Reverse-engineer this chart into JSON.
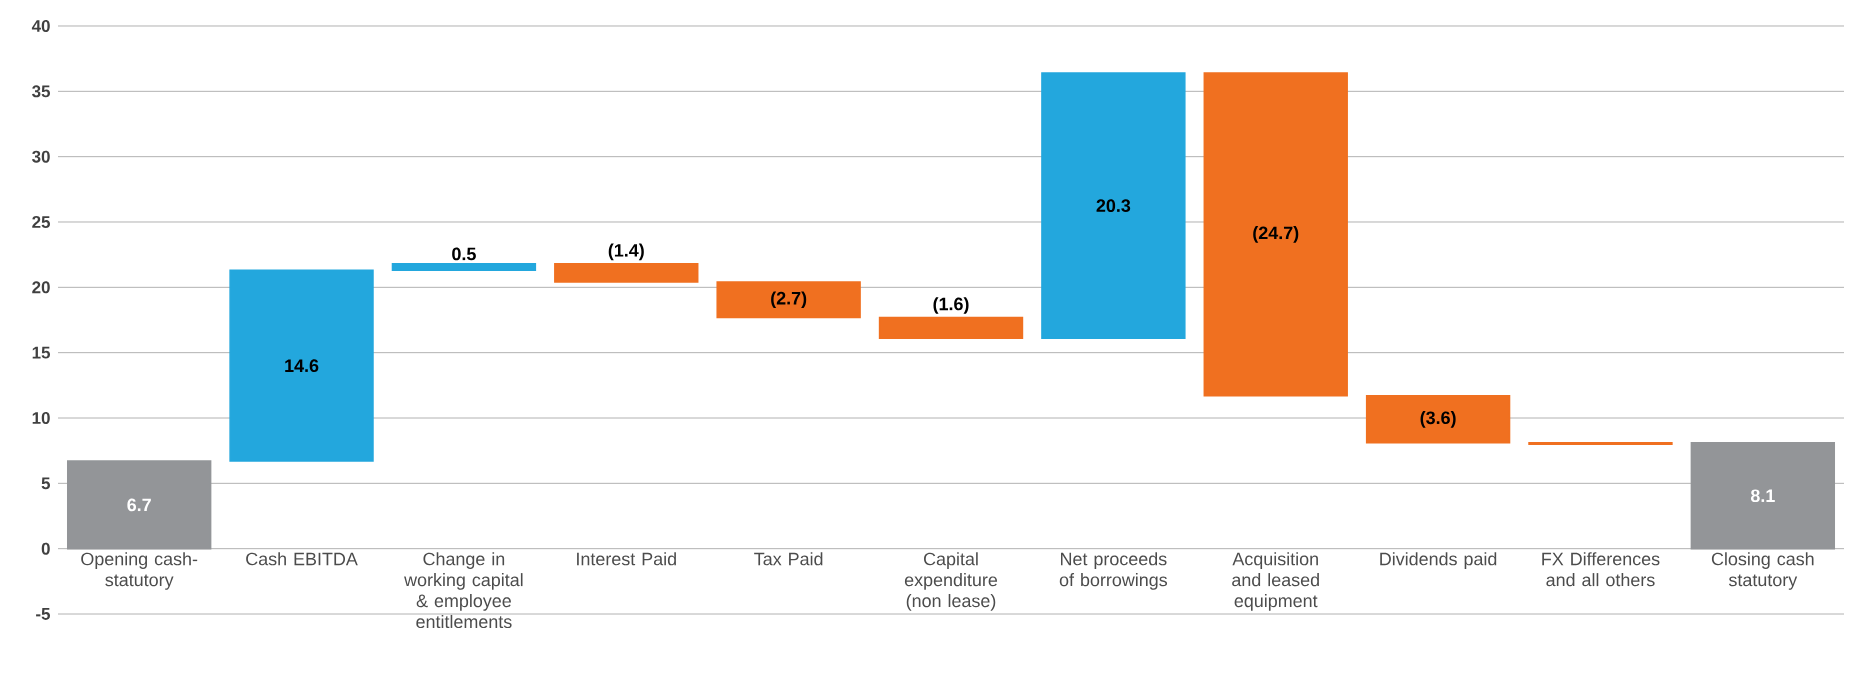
{
  "chart_data": {
    "type": "bar",
    "categories": [
      "Opening cash- statutory",
      "Cash EBITDA",
      "Change in working capital & employee entitlements",
      "Interest Paid",
      "Tax Paid",
      "Capital expenditure (non lease)",
      "Net proceeds of borrowings",
      "Acquisition and leased equipment",
      "Dividends paid",
      "FX Differences and all others",
      "Closing cash statutory"
    ],
    "values": [
      6.7,
      14.6,
      0.5,
      -1.4,
      -2.7,
      -1.6,
      20.3,
      -24.7,
      -3.6,
      -0.1,
      8.1
    ],
    "base": [
      0,
      6.7,
      21.3,
      21.8,
      20.4,
      17.7,
      16.1,
      36.4,
      11.7,
      8.1,
      0
    ],
    "colors": [
      "#939598",
      "#23a7dd",
      "#23a7dd",
      "#f07020",
      "#f07020",
      "#f07020",
      "#23a7dd",
      "#f07020",
      "#f07020",
      "#f07020",
      "#939598"
    ],
    "value_labels": [
      "6.7",
      "14.6",
      "0.5",
      "(1.4)",
      "(2.7)",
      "(1.6)",
      "20.3",
      "(24.7)",
      "(3.6)",
      null,
      "8.1"
    ],
    "ylim": [
      -5,
      40
    ],
    "yticks": [
      -5,
      0,
      5,
      10,
      15,
      20,
      25,
      30,
      35,
      40
    ],
    "grid": "y"
  }
}
